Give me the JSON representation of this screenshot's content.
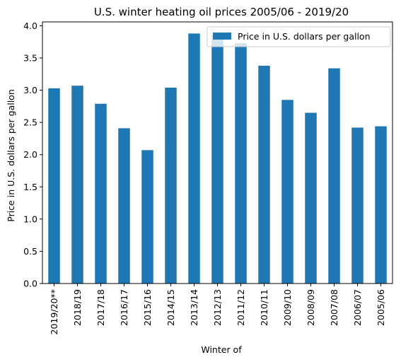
{
  "chart_data": {
    "type": "bar",
    "title": "U.S. winter heating oil prices 2005/06 - 2019/20",
    "xlabel": "Winter of",
    "ylabel": "Price in U.S. dollars per gallon",
    "categories": [
      "2019/20**",
      "2018/19",
      "2017/18",
      "2016/17",
      "2015/16",
      "2014/15",
      "2013/14",
      "2012/13",
      "2011/12",
      "2010/11",
      "2009/10",
      "2008/09",
      "2007/08",
      "2006/07",
      "2005/06"
    ],
    "series": [
      {
        "name": "Price in U.S. dollars per gallon",
        "values": [
          3.03,
          3.07,
          2.79,
          2.41,
          2.07,
          3.04,
          3.88,
          3.86,
          3.73,
          3.38,
          2.85,
          2.65,
          3.34,
          2.42,
          2.44
        ]
      }
    ],
    "ylim": [
      0,
      4.06
    ],
    "yticks": [
      0.0,
      0.5,
      1.0,
      1.5,
      2.0,
      2.5,
      3.0,
      3.5,
      4.0
    ],
    "ytick_labels": [
      "0.0",
      "0.5",
      "1.0",
      "1.5",
      "2.0",
      "2.5",
      "3.0",
      "3.5",
      "4.0"
    ],
    "legend_position": "top-right",
    "grid": false,
    "bar_color": "#1f77b4"
  }
}
